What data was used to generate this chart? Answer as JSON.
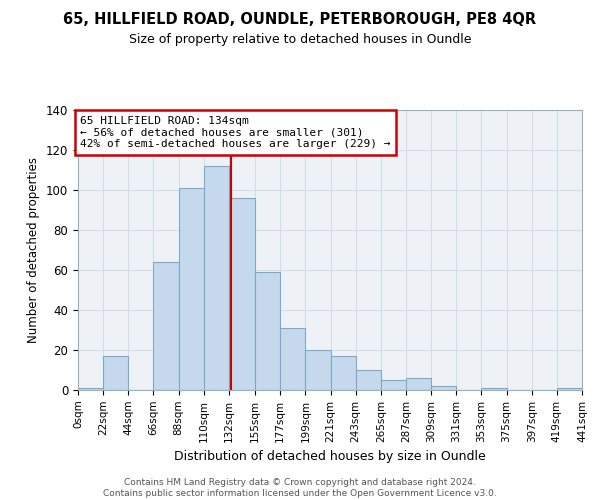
{
  "title": "65, HILLFIELD ROAD, OUNDLE, PETERBOROUGH, PE8 4QR",
  "subtitle": "Size of property relative to detached houses in Oundle",
  "xlabel": "Distribution of detached houses by size in Oundle",
  "ylabel": "Number of detached properties",
  "bar_edges": [
    0,
    22,
    44,
    66,
    88,
    110,
    132,
    155,
    177,
    199,
    221,
    243,
    265,
    287,
    309,
    331,
    353,
    375,
    397,
    419,
    441
  ],
  "bar_heights": [
    1,
    17,
    0,
    64,
    101,
    112,
    96,
    59,
    31,
    20,
    17,
    10,
    5,
    6,
    2,
    0,
    1,
    0,
    0,
    1
  ],
  "bar_color": "#c6d9ec",
  "bar_edge_color": "#7aaac8",
  "vline_x": 134,
  "vline_color": "#cc0000",
  "annotation_line1": "65 HILLFIELD ROAD: 134sqm",
  "annotation_line2": "← 56% of detached houses are smaller (301)",
  "annotation_line3": "42% of semi-detached houses are larger (229) →",
  "annotation_box_color": "#ffffff",
  "annotation_box_edge": "#cc0000",
  "ylim": [
    0,
    140
  ],
  "yticks": [
    0,
    20,
    40,
    60,
    80,
    100,
    120,
    140
  ],
  "xtick_labels": [
    "0sqm",
    "22sqm",
    "44sqm",
    "66sqm",
    "88sqm",
    "110sqm",
    "132sqm",
    "155sqm",
    "177sqm",
    "199sqm",
    "221sqm",
    "243sqm",
    "265sqm",
    "287sqm",
    "309sqm",
    "331sqm",
    "353sqm",
    "375sqm",
    "397sqm",
    "419sqm",
    "441sqm"
  ],
  "footer_text": "Contains HM Land Registry data © Crown copyright and database right 2024.\nContains public sector information licensed under the Open Government Licence v3.0.",
  "grid_color": "#d0dce8",
  "bg_color": "#eef2f7"
}
